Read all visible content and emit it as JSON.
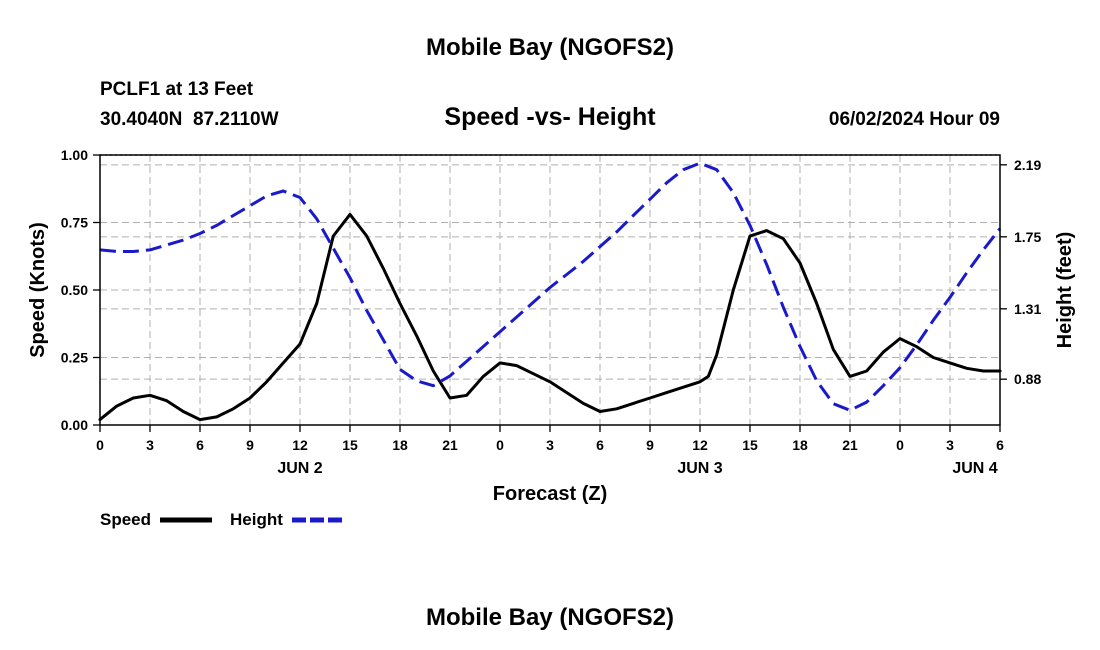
{
  "page": {
    "title": "Mobile Bay (NGOFS2)",
    "title_bottom": "Mobile Bay (NGOFS2)",
    "station": "PCLF1 at 13 Feet",
    "coords": "30.4040N  87.2110W",
    "subtitle": "Speed -vs- Height",
    "timestamp": "06/02/2024 Hour 09"
  },
  "chart_data": {
    "type": "line",
    "xlabel": "Forecast (Z)",
    "ylabel": "Speed (Knots)",
    "y2label": "Height (feet)",
    "xlim": [
      0,
      54
    ],
    "ylim": [
      0,
      1.0
    ],
    "y2lim": [
      0.6,
      2.25
    ],
    "x_ticks": [
      0,
      3,
      6,
      9,
      12,
      15,
      18,
      21,
      24,
      27,
      30,
      33,
      36,
      39,
      42,
      45,
      48,
      51,
      54
    ],
    "x_tick_labels": [
      "0",
      "3",
      "6",
      "9",
      "12",
      "15",
      "18",
      "21",
      "0",
      "3",
      "6",
      "9",
      "12",
      "15",
      "18",
      "21",
      "0",
      "3",
      "6"
    ],
    "date_labels": [
      {
        "x": 12,
        "label": "JUN 2"
      },
      {
        "x": 36,
        "label": "JUN 3"
      },
      {
        "x": 52.5,
        "label": "JUN 4"
      }
    ],
    "y_ticks": [
      0.0,
      0.25,
      0.5,
      0.75,
      1.0
    ],
    "y_tick_labels": [
      "0.00",
      "0.25",
      "0.50",
      "0.75",
      "1.00"
    ],
    "y2_ticks": [
      0.88,
      1.31,
      1.75,
      2.19
    ],
    "y2_tick_labels": [
      "0.88",
      "1.31",
      "1.75",
      "2.19"
    ],
    "grid": true,
    "legend_position": "bottom-left",
    "series": [
      {
        "name": "Speed",
        "axis": "left",
        "color": "#000000",
        "dash": "solid",
        "x": [
          0,
          1,
          2,
          3,
          4,
          5,
          6,
          7,
          8,
          9,
          10,
          11,
          12,
          13,
          14,
          15,
          16,
          17,
          18,
          19,
          20,
          21,
          22,
          23,
          24,
          25,
          26,
          27,
          28,
          29,
          30,
          31,
          32,
          33,
          34,
          35,
          36,
          36.5,
          37,
          38,
          39,
          40,
          41,
          42,
          43,
          44,
          45,
          46,
          47,
          48,
          49,
          50,
          51,
          52,
          53,
          54
        ],
        "values": [
          0.02,
          0.07,
          0.1,
          0.11,
          0.09,
          0.05,
          0.02,
          0.03,
          0.06,
          0.1,
          0.16,
          0.23,
          0.3,
          0.45,
          0.7,
          0.78,
          0.7,
          0.58,
          0.45,
          0.33,
          0.2,
          0.1,
          0.11,
          0.18,
          0.23,
          0.22,
          0.19,
          0.16,
          0.12,
          0.08,
          0.05,
          0.06,
          0.08,
          0.1,
          0.12,
          0.14,
          0.16,
          0.18,
          0.26,
          0.5,
          0.7,
          0.72,
          0.69,
          0.6,
          0.45,
          0.28,
          0.18,
          0.2,
          0.27,
          0.32,
          0.29,
          0.25,
          0.23,
          0.21,
          0.2,
          0.2
        ]
      },
      {
        "name": "Height",
        "axis": "right",
        "color": "#1a1acc",
        "dash": "dashed",
        "x": [
          0,
          1,
          2,
          3,
          4,
          5,
          6,
          7,
          8,
          9,
          10,
          11,
          12,
          13,
          14,
          15,
          16,
          17,
          18,
          19,
          20,
          21,
          22,
          23,
          24,
          25,
          26,
          27,
          28,
          29,
          30,
          31,
          32,
          33,
          34,
          35,
          36,
          37,
          38,
          39,
          40,
          41,
          42,
          43,
          44,
          45,
          46,
          47,
          48,
          49,
          50,
          51,
          52,
          53,
          54
        ],
        "values": [
          1.67,
          1.66,
          1.66,
          1.67,
          1.7,
          1.73,
          1.77,
          1.82,
          1.88,
          1.94,
          2.0,
          2.03,
          1.99,
          1.86,
          1.68,
          1.5,
          1.3,
          1.12,
          0.94,
          0.87,
          0.84,
          0.9,
          0.99,
          1.08,
          1.17,
          1.26,
          1.35,
          1.44,
          1.52,
          1.6,
          1.69,
          1.78,
          1.88,
          1.98,
          2.08,
          2.16,
          2.2,
          2.16,
          2.02,
          1.82,
          1.58,
          1.32,
          1.08,
          0.87,
          0.73,
          0.69,
          0.74,
          0.84,
          0.95,
          1.09,
          1.24,
          1.38,
          1.53,
          1.67,
          1.8
        ]
      }
    ]
  }
}
